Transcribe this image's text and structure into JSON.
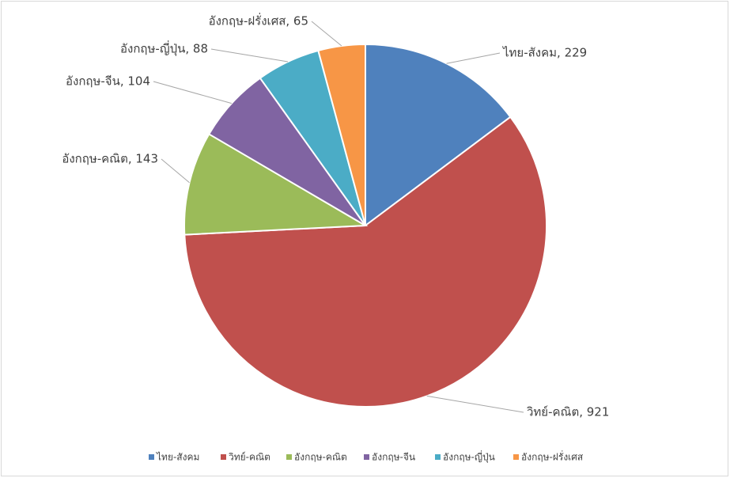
{
  "chart_data": {
    "type": "pie",
    "categories": [
      "ไทย-สังคม",
      "วิทย์-คณิต",
      "อังกฤษ-คณิต",
      "อังกฤษ-จีน",
      "อังกฤษ-ญี่ปุ่น",
      "อังกฤษ-ฝรั่งเศส"
    ],
    "values": [
      229,
      921,
      143,
      104,
      88,
      65
    ],
    "value_labels": [
      "ไทย-สังคม, 229",
      "วิทย์-คณิต, 921",
      "อังกฤษ-คณิต, 143",
      "อังกฤษ-จีน, 104",
      "อังกฤษ-ญี่ปุ่น, 88",
      "อังกฤษ-ฝรั่งเศส, 65"
    ],
    "colors": [
      "#4f81bd",
      "#c0504d",
      "#9bbb59",
      "#8064a2",
      "#4bacc6",
      "#f79646"
    ],
    "legend": "bottom"
  }
}
